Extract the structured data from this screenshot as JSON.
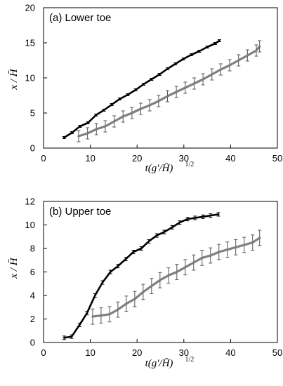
{
  "chart_data": [
    {
      "type": "line",
      "title": "(a) Lower toe",
      "xlabel": {
        "main": "t(g'/H̄)",
        "exp": "1/2"
      },
      "ylabel": "x / H̄",
      "xlim": [
        0,
        50
      ],
      "ylim": [
        0,
        20
      ],
      "xticks": [
        0,
        10,
        20,
        30,
        40,
        50
      ],
      "yticks": [
        0,
        5,
        10,
        15,
        20
      ],
      "grid": false,
      "series": [
        {
          "color": "#000000",
          "x": [
            4.4,
            6.1,
            7.8,
            9.5,
            11.2,
            12.9,
            14.6,
            16.3,
            18.0,
            19.7,
            21.4,
            23.1,
            24.8,
            26.5,
            28.2,
            29.9,
            31.6,
            33.3,
            35.0,
            36.7,
            37.6
          ],
          "y": [
            1.5,
            2.2,
            3.1,
            3.6,
            4.7,
            5.4,
            6.2,
            7.0,
            7.6,
            8.3,
            9.1,
            9.8,
            10.5,
            11.3,
            12.0,
            12.7,
            13.3,
            13.8,
            14.4,
            14.9,
            15.3
          ],
          "err": 0.15
        },
        {
          "color": "#808080",
          "x": [
            7.5,
            9.4,
            11.3,
            13.2,
            15.1,
            17.0,
            18.9,
            20.8,
            22.7,
            24.6,
            26.5,
            28.4,
            30.3,
            32.2,
            34.1,
            36.0,
            37.9,
            39.8,
            41.7,
            43.6,
            45.5,
            46.2
          ],
          "y": [
            1.7,
            2.1,
            2.7,
            3.1,
            3.8,
            4.5,
            5.0,
            5.6,
            6.1,
            6.7,
            7.4,
            8.0,
            8.6,
            9.2,
            9.8,
            10.5,
            11.2,
            11.8,
            12.5,
            13.2,
            13.9,
            14.5
          ],
          "err": 0.8
        }
      ]
    },
    {
      "type": "line",
      "title": "(b) Upper toe",
      "xlabel": {
        "main": "t(g'/H̄)",
        "exp": "1/2"
      },
      "ylabel": "x / H̄",
      "xlim": [
        0,
        50
      ],
      "ylim": [
        0,
        12
      ],
      "xticks": [
        0,
        10,
        20,
        30,
        40,
        50
      ],
      "yticks": [
        0,
        2,
        4,
        6,
        8,
        10,
        12
      ],
      "grid": false,
      "series": [
        {
          "color": "#000000",
          "x": [
            4.4,
            6.0,
            7.7,
            9.3,
            11.0,
            12.6,
            14.3,
            15.9,
            17.6,
            19.2,
            20.9,
            22.5,
            24.2,
            25.8,
            27.5,
            29.1,
            30.8,
            32.4,
            34.1,
            35.7,
            37.4
          ],
          "y": [
            0.4,
            0.5,
            1.5,
            2.5,
            4.0,
            5.1,
            6.0,
            6.5,
            7.1,
            7.7,
            8.0,
            8.6,
            9.1,
            9.4,
            9.8,
            10.2,
            10.5,
            10.6,
            10.7,
            10.8,
            10.9
          ],
          "err": 0.15
        },
        {
          "color": "#808080",
          "x": [
            10.5,
            12.3,
            14.1,
            15.9,
            17.7,
            19.5,
            21.3,
            23.1,
            24.9,
            26.7,
            28.5,
            30.3,
            32.1,
            33.9,
            35.7,
            37.5,
            39.3,
            41.1,
            42.9,
            44.7,
            46.2
          ],
          "y": [
            2.2,
            2.3,
            2.4,
            2.8,
            3.3,
            3.7,
            4.3,
            4.8,
            5.3,
            5.7,
            6.0,
            6.4,
            6.8,
            7.2,
            7.4,
            7.7,
            7.9,
            8.1,
            8.3,
            8.5,
            8.9
          ],
          "err": 0.65
        }
      ]
    }
  ]
}
